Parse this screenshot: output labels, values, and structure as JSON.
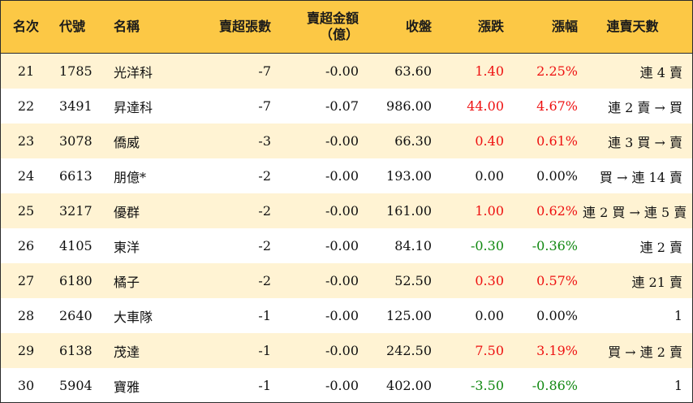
{
  "headers": {
    "rank": "名次",
    "code": "代號",
    "name": "名稱",
    "sell_sheets": "賣超張數",
    "sell_amount_line1": "賣超金額",
    "sell_amount_line2": "（億）",
    "close": "收盤",
    "change": "漲跌",
    "pct": "漲幅",
    "streak": "連賣天數"
  },
  "rows": [
    {
      "rank": "21",
      "code": "1785",
      "name": "光洋科",
      "sell_sheets": "-7",
      "sell_amount": "-0.00",
      "close": "63.60",
      "change": "1.40",
      "pct": "2.25%",
      "trend": "up",
      "streak": "連 4 賣"
    },
    {
      "rank": "22",
      "code": "3491",
      "name": "昇達科",
      "sell_sheets": "-7",
      "sell_amount": "-0.07",
      "close": "986.00",
      "change": "44.00",
      "pct": "4.67%",
      "trend": "up",
      "streak": "連 2 賣 → 買"
    },
    {
      "rank": "23",
      "code": "3078",
      "name": "僑威",
      "sell_sheets": "-3",
      "sell_amount": "-0.00",
      "close": "66.30",
      "change": "0.40",
      "pct": "0.61%",
      "trend": "up",
      "streak": "連 3 買 → 賣"
    },
    {
      "rank": "24",
      "code": "6613",
      "name": "朋億*",
      "sell_sheets": "-2",
      "sell_amount": "-0.00",
      "close": "193.00",
      "change": "0.00",
      "pct": "0.00%",
      "trend": "flat",
      "streak": "買 → 連 14 賣"
    },
    {
      "rank": "25",
      "code": "3217",
      "name": "優群",
      "sell_sheets": "-2",
      "sell_amount": "-0.00",
      "close": "161.00",
      "change": "1.00",
      "pct": "0.62%",
      "trend": "up",
      "streak": "連 2 買 → 連 5 賣"
    },
    {
      "rank": "26",
      "code": "4105",
      "name": "東洋",
      "sell_sheets": "-2",
      "sell_amount": "-0.00",
      "close": "84.10",
      "change": "-0.30",
      "pct": "-0.36%",
      "trend": "down",
      "streak": "連 2 賣"
    },
    {
      "rank": "27",
      "code": "6180",
      "name": "橘子",
      "sell_sheets": "-2",
      "sell_amount": "-0.00",
      "close": "52.50",
      "change": "0.30",
      "pct": "0.57%",
      "trend": "up",
      "streak": "連 21 賣"
    },
    {
      "rank": "28",
      "code": "2640",
      "name": "大車隊",
      "sell_sheets": "-1",
      "sell_amount": "-0.00",
      "close": "125.00",
      "change": "0.00",
      "pct": "0.00%",
      "trend": "flat",
      "streak": "1"
    },
    {
      "rank": "29",
      "code": "6138",
      "name": "茂達",
      "sell_sheets": "-1",
      "sell_amount": "-0.00",
      "close": "242.50",
      "change": "7.50",
      "pct": "3.19%",
      "trend": "up",
      "streak": "買 → 連 2 賣"
    },
    {
      "rank": "30",
      "code": "5904",
      "name": "寶雅",
      "sell_sheets": "-1",
      "sell_amount": "-0.00",
      "close": "402.00",
      "change": "-3.50",
      "pct": "-0.86%",
      "trend": "down",
      "streak": "1"
    }
  ],
  "colors": {
    "header_bg": "#fcc845",
    "odd_row_bg": "#fff3d3",
    "up": "#ee1111",
    "down": "#118811",
    "flat": "#111111"
  }
}
